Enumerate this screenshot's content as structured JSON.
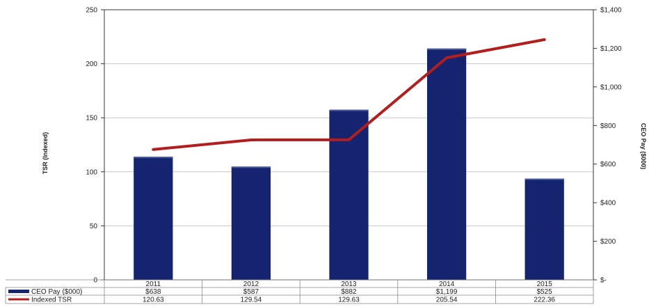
{
  "chart_data": {
    "type": "bar",
    "categories": [
      "2011",
      "2012",
      "2013",
      "2014",
      "2015"
    ],
    "series": [
      {
        "name": "CEO Pay ($000)",
        "type": "bar",
        "axis": "right",
        "values": [
          638,
          587,
          882,
          1199,
          525
        ],
        "labels": [
          "$638",
          "$587",
          "$882",
          "$1,199",
          "$525"
        ],
        "color": "#14246e"
      },
      {
        "name": "Indexed TSR",
        "type": "line",
        "axis": "left",
        "values": [
          120.63,
          129.54,
          129.63,
          205.54,
          222.36
        ],
        "labels": [
          "120.63",
          "129.54",
          "129.63",
          "205.54",
          "222.36"
        ],
        "color": "#b21e1e"
      }
    ],
    "ylabel": "TSR (Indexed)",
    "y2label": "CEO Pay ($000)",
    "ylim": [
      0,
      250
    ],
    "y2lim": [
      0,
      1400
    ],
    "yticks": [
      "0",
      "50",
      "100",
      "150",
      "200",
      "250"
    ],
    "y2ticks": [
      "$-",
      "$200",
      "$400",
      "$600",
      "$800",
      "$1,000",
      "$1,200",
      "$1,400"
    ],
    "grid": true,
    "legend": "bottom-left data table"
  }
}
